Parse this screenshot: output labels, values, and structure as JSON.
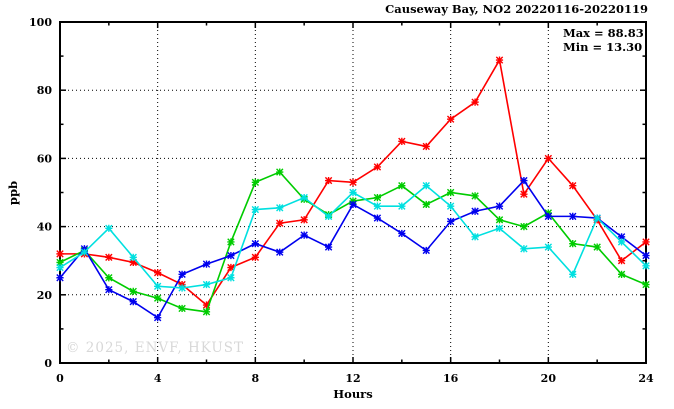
{
  "chart": {
    "title": "Causeway Bay, NO2 20220116-20220119",
    "max_label": "Max = 88.83",
    "min_label": "Min = 13.30",
    "watermark": "© 2025, ENVF, HKUST",
    "ylabel": "ppb",
    "xlabel": "Hours"
  },
  "chart_data": {
    "type": "line",
    "title": "Causeway Bay, NO2 20220116-20220119",
    "xlabel": "Hours",
    "ylabel": "ppb",
    "xlim": [
      0,
      24
    ],
    "ylim": [
      0,
      100
    ],
    "max_value": 88.83,
    "min_value": 13.3,
    "grid": "dotted",
    "legend_position": "none",
    "x_axis": {
      "ticks": [
        0,
        4,
        8,
        12,
        16,
        20,
        24
      ],
      "tick_labels": [
        "0",
        "4",
        "8",
        "12",
        "16",
        "20",
        "24"
      ],
      "minor_ticks": [
        2,
        6,
        10,
        14,
        18,
        22
      ],
      "gridlines": [
        4,
        8,
        12,
        16,
        20
      ]
    },
    "y_axis": {
      "ticks": [
        0,
        20,
        40,
        60,
        80,
        100
      ],
      "tick_labels": [
        "0",
        "20",
        "40",
        "60",
        "80",
        "100"
      ],
      "minor_ticks": [
        10,
        30,
        50,
        70,
        90
      ],
      "gridlines": [
        20,
        40,
        60,
        80
      ]
    },
    "x": [
      0,
      1,
      2,
      3,
      4,
      5,
      6,
      7,
      8,
      9,
      10,
      11,
      12,
      13,
      14,
      15,
      16,
      17,
      18,
      19,
      20,
      21,
      22,
      23,
      24
    ],
    "series": [
      {
        "name": "red",
        "color": "#ff0000",
        "values": [
          32,
          32,
          31,
          29.5,
          26.5,
          23,
          17,
          28,
          31,
          41,
          42,
          53.5,
          53,
          57.5,
          65,
          63.5,
          71.5,
          76.5,
          88.83,
          49.5,
          60,
          52,
          42,
          30,
          35.5
        ]
      },
      {
        "name": "green",
        "color": "#00cc00",
        "values": [
          29.5,
          33,
          25,
          21,
          19,
          16,
          15,
          35.5,
          53,
          56,
          48,
          43.5,
          47.5,
          48.5,
          52,
          46.5,
          50,
          49,
          42,
          40,
          44,
          35,
          34,
          26,
          23
        ]
      },
      {
        "name": "blue",
        "color": "#0000ee",
        "values": [
          25,
          33.5,
          21.5,
          18,
          13.3,
          26,
          29,
          31.5,
          35,
          32.5,
          37.5,
          34,
          46.5,
          42.5,
          38,
          33,
          41.5,
          44.5,
          46,
          53.5,
          43,
          43,
          42.5,
          37,
          31.5
        ]
      },
      {
        "name": "cyan",
        "color": "#00e0e0",
        "values": [
          28,
          32.5,
          39.5,
          31,
          22.5,
          22,
          23,
          25,
          45,
          45.5,
          48.5,
          43,
          50,
          46,
          46,
          52,
          46,
          37,
          39.5,
          33.5,
          34,
          26,
          42.5,
          35.5,
          28.5
        ]
      }
    ]
  }
}
